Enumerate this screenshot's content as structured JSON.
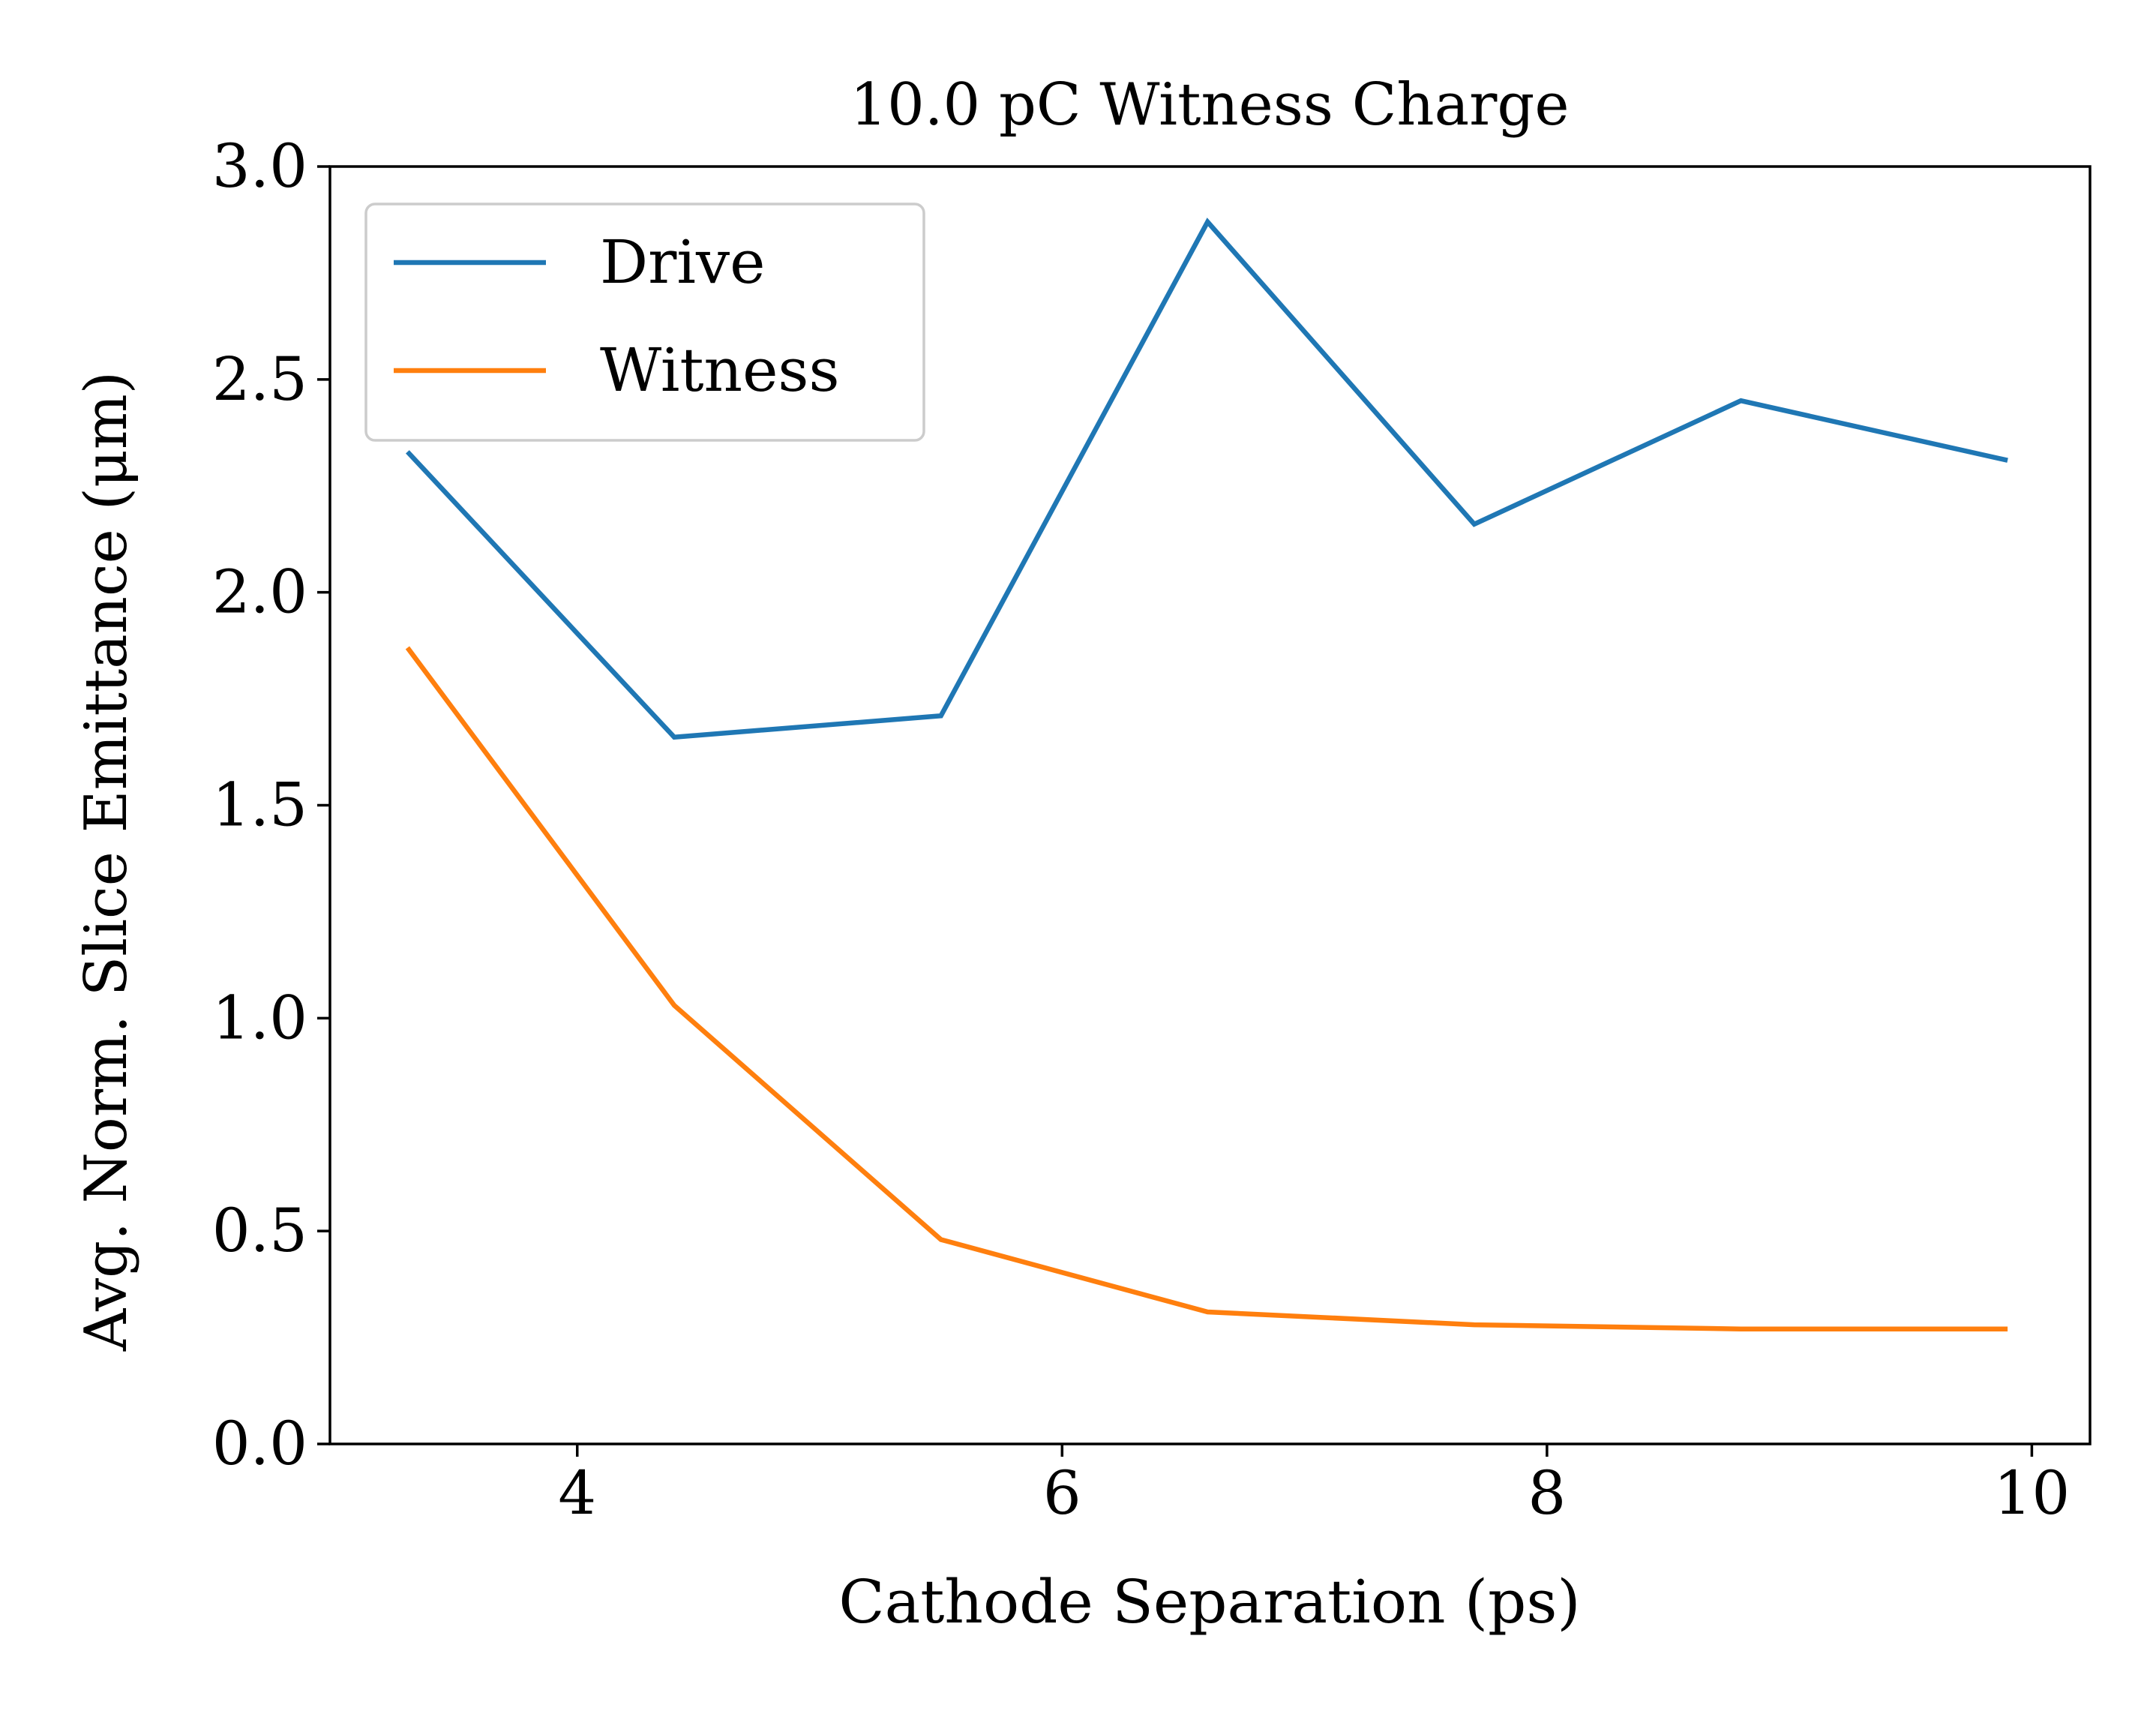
{
  "chart_data": {
    "type": "line",
    "title": "10.0 pC Witness Charge",
    "xlabel": "Cathode Separation (ps)",
    "ylabel": "Avg. Norm. Slice Emittance (μm)",
    "xlim": [
      2.98,
      10.24
    ],
    "ylim": [
      0.0,
      3.0
    ],
    "xticks": [
      4,
      6,
      8,
      10
    ],
    "xtick_labels": [
      "4",
      "6",
      "8",
      "10"
    ],
    "yticks": [
      0.0,
      0.5,
      1.0,
      1.5,
      2.0,
      2.5,
      3.0
    ],
    "ytick_labels": [
      "0.0",
      "0.5",
      "1.0",
      "1.5",
      "2.0",
      "2.5",
      "3.0"
    ],
    "grid": false,
    "legend_position": "upper-left",
    "x": [
      3.3,
      4.4,
      5.5,
      6.6,
      7.7,
      8.8,
      9.9
    ],
    "series": [
      {
        "name": "Drive",
        "color": "#1f77b4",
        "values": [
          2.33,
          1.66,
          1.71,
          2.87,
          2.16,
          2.45,
          2.31
        ]
      },
      {
        "name": "Witness",
        "color": "#ff7f0e",
        "values": [
          1.87,
          1.03,
          0.48,
          0.31,
          0.28,
          0.27,
          0.27
        ]
      }
    ]
  }
}
